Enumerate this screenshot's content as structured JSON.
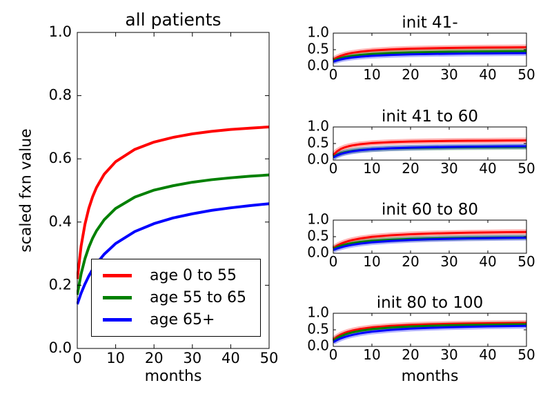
{
  "figure": {
    "background": "#ffffff",
    "axis_color": "#000000",
    "text_color": "#000000"
  },
  "chart_data": [
    {
      "id": "all-patients",
      "type": "line",
      "title": "all patients",
      "xlabel": "months",
      "ylabel": "scaled fxn value",
      "xlim": [
        0,
        50
      ],
      "ylim": [
        0,
        1
      ],
      "xticks": [
        0,
        10,
        20,
        30,
        40,
        50
      ],
      "yticks": [
        0,
        0.2,
        0.4,
        0.6,
        0.8,
        1
      ],
      "grid": false,
      "legend_loc": "lower left",
      "band": false,
      "x": [
        0,
        1,
        2,
        3,
        4,
        5,
        7,
        10,
        15,
        20,
        25,
        30,
        35,
        40,
        45,
        50
      ],
      "series": [
        {
          "name": "age 0 to 55",
          "color": "#ff0000",
          "y": [
            0.22,
            0.324,
            0.393,
            0.443,
            0.48,
            0.509,
            0.551,
            0.591,
            0.63,
            0.653,
            0.668,
            0.679,
            0.687,
            0.693,
            0.697,
            0.701
          ]
        },
        {
          "name": "age 55 to 65",
          "color": "#008000",
          "y": [
            0.17,
            0.236,
            0.284,
            0.32,
            0.349,
            0.372,
            0.407,
            0.443,
            0.479,
            0.501,
            0.515,
            0.526,
            0.534,
            0.54,
            0.545,
            0.549
          ]
        },
        {
          "name": "age 65+",
          "color": "#0000ff",
          "y": [
            0.14,
            0.175,
            0.204,
            0.229,
            0.25,
            0.268,
            0.298,
            0.332,
            0.37,
            0.395,
            0.413,
            0.426,
            0.437,
            0.445,
            0.452,
            0.458
          ]
        }
      ]
    },
    {
      "id": "init-41-minus",
      "type": "line",
      "title": "init 41-",
      "xlabel": "",
      "ylabel": "",
      "xlim": [
        0,
        50
      ],
      "ylim": [
        0,
        1
      ],
      "xticks": [
        0,
        10,
        20,
        30,
        40,
        50
      ],
      "yticks": [
        0,
        0.5,
        1
      ],
      "grid": false,
      "band": true,
      "x": [
        0,
        1,
        2,
        3,
        4,
        5,
        7,
        10,
        15,
        20,
        25,
        30,
        35,
        40,
        45,
        50
      ],
      "series": [
        {
          "name": "age 0 to 55",
          "color": "#ff0000",
          "y": [
            0.2,
            0.268,
            0.317,
            0.354,
            0.382,
            0.405,
            0.439,
            0.473,
            0.508,
            0.528,
            0.542,
            0.551,
            0.559,
            0.564,
            0.569,
            0.573
          ]
        },
        {
          "name": "age 55 to 65",
          "color": "#008000",
          "y": [
            0.17,
            0.216,
            0.25,
            0.277,
            0.298,
            0.315,
            0.342,
            0.37,
            0.399,
            0.416,
            0.428,
            0.437,
            0.443,
            0.448,
            0.452,
            0.456
          ]
        },
        {
          "name": "age 65+",
          "color": "#0000ff",
          "y": [
            0.14,
            0.179,
            0.208,
            0.232,
            0.25,
            0.266,
            0.29,
            0.316,
            0.342,
            0.359,
            0.37,
            0.378,
            0.385,
            0.389,
            0.393,
            0.397
          ]
        }
      ]
    },
    {
      "id": "init-41-to-60",
      "type": "line",
      "title": "init 41 to 60",
      "xlabel": "",
      "ylabel": "",
      "xlim": [
        0,
        50
      ],
      "ylim": [
        0,
        1
      ],
      "xticks": [
        0,
        10,
        20,
        30,
        40,
        50
      ],
      "yticks": [
        0,
        0.5,
        1
      ],
      "grid": false,
      "band": true,
      "x": [
        0,
        1,
        2,
        3,
        4,
        5,
        7,
        10,
        15,
        20,
        25,
        30,
        35,
        40,
        45,
        50
      ],
      "series": [
        {
          "name": "age 0 to 55",
          "color": "#ff0000",
          "y": [
            0.15,
            0.268,
            0.338,
            0.385,
            0.419,
            0.444,
            0.479,
            0.512,
            0.542,
            0.559,
            0.57,
            0.577,
            0.583,
            0.587,
            0.591,
            0.593
          ]
        },
        {
          "name": "age 55 to 65",
          "color": "#008000",
          "y": [
            0.1,
            0.164,
            0.207,
            0.237,
            0.26,
            0.278,
            0.304,
            0.329,
            0.353,
            0.367,
            0.376,
            0.382,
            0.387,
            0.391,
            0.394,
            0.396
          ]
        },
        {
          "name": "age 65+",
          "color": "#0000ff",
          "y": [
            0.08,
            0.142,
            0.186,
            0.219,
            0.244,
            0.265,
            0.296,
            0.327,
            0.358,
            0.376,
            0.388,
            0.397,
            0.404,
            0.409,
            0.413,
            0.416
          ]
        }
      ]
    },
    {
      "id": "init-60-to-80",
      "type": "line",
      "title": "init 60 to 80",
      "xlabel": "",
      "ylabel": "",
      "xlim": [
        0,
        50
      ],
      "ylim": [
        0,
        1
      ],
      "xticks": [
        0,
        10,
        20,
        30,
        40,
        50
      ],
      "yticks": [
        0,
        0.5,
        1
      ],
      "grid": false,
      "band": true,
      "x": [
        0,
        1,
        2,
        3,
        4,
        5,
        7,
        10,
        15,
        20,
        25,
        30,
        35,
        40,
        45,
        50
      ],
      "series": [
        {
          "name": "age 0 to 55",
          "color": "#ff0000",
          "y": [
            0.15,
            0.229,
            0.288,
            0.333,
            0.37,
            0.4,
            0.446,
            0.494,
            0.543,
            0.573,
            0.594,
            0.608,
            0.62,
            0.628,
            0.635,
            0.641
          ]
        },
        {
          "name": "age 55 to 65",
          "color": "#008000",
          "y": [
            0.13,
            0.186,
            0.228,
            0.261,
            0.287,
            0.308,
            0.341,
            0.375,
            0.41,
            0.432,
            0.446,
            0.457,
            0.465,
            0.471,
            0.476,
            0.48
          ]
        },
        {
          "name": "age 65+",
          "color": "#0000ff",
          "y": [
            0.1,
            0.144,
            0.179,
            0.209,
            0.234,
            0.256,
            0.291,
            0.33,
            0.373,
            0.401,
            0.421,
            0.436,
            0.448,
            0.457,
            0.464,
            0.47
          ]
        }
      ]
    },
    {
      "id": "init-80-to-100",
      "type": "line",
      "title": "init 80 to 100",
      "xlabel": "months",
      "ylabel": "",
      "xlim": [
        0,
        50
      ],
      "ylim": [
        0,
        1
      ],
      "xticks": [
        0,
        10,
        20,
        30,
        40,
        50
      ],
      "yticks": [
        0,
        0.5,
        1
      ],
      "grid": false,
      "band": true,
      "x": [
        0,
        1,
        2,
        3,
        4,
        5,
        7,
        10,
        15,
        20,
        25,
        30,
        35,
        40,
        45,
        50
      ],
      "series": [
        {
          "name": "age 0 to 55",
          "color": "#ff0000",
          "y": [
            0.2,
            0.293,
            0.36,
            0.41,
            0.449,
            0.48,
            0.527,
            0.573,
            0.62,
            0.648,
            0.667,
            0.68,
            0.69,
            0.698,
            0.704,
            0.709
          ]
        },
        {
          "name": "age 55 to 65",
          "color": "#008000",
          "y": [
            0.17,
            0.25,
            0.31,
            0.357,
            0.394,
            0.425,
            0.471,
            0.52,
            0.57,
            0.601,
            0.622,
            0.637,
            0.648,
            0.657,
            0.664,
            0.67
          ]
        },
        {
          "name": "age 65+",
          "color": "#0000ff",
          "y": [
            0.13,
            0.193,
            0.244,
            0.285,
            0.319,
            0.348,
            0.395,
            0.446,
            0.5,
            0.536,
            0.56,
            0.578,
            0.592,
            0.603,
            0.612,
            0.62
          ]
        }
      ]
    }
  ]
}
